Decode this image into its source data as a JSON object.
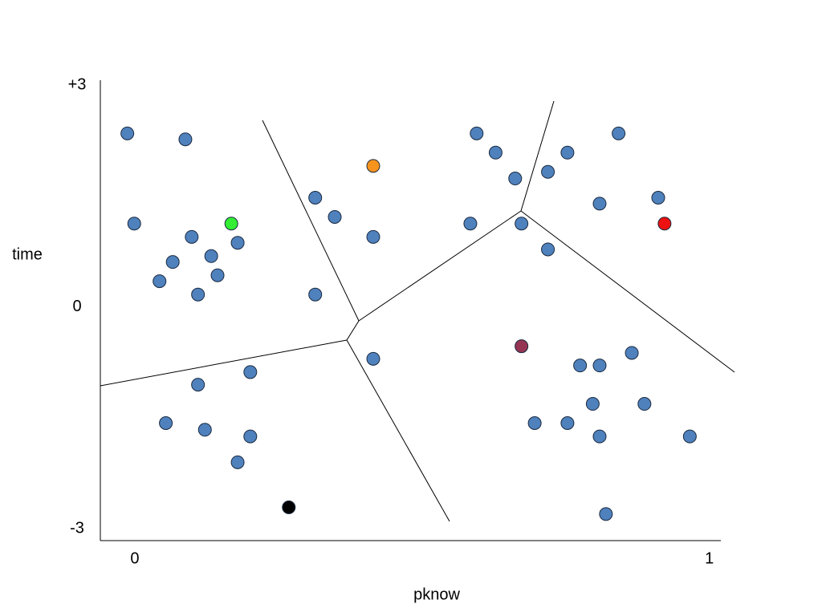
{
  "chart_data": {
    "type": "scatter",
    "xlabel": "pknow",
    "ylabel": "time",
    "xlim": [
      -0.06,
      1.02
    ],
    "ylim": [
      -3.16,
      3.07
    ],
    "xticks": [
      0,
      1
    ],
    "yticks": [
      {
        "value": 3,
        "label": "+3"
      },
      0,
      -3
    ],
    "series": [
      {
        "color": "#4f81bd",
        "x": [
          -0.013,
          0.088,
          -0.001,
          0.099,
          0.179,
          0.066,
          0.133,
          0.043,
          0.144,
          0.11,
          0.314,
          0.348,
          0.415,
          0.314,
          0.595,
          0.628,
          0.662,
          0.584,
          0.673,
          0.719,
          0.753,
          0.842,
          0.809,
          0.911,
          0.719,
          0.865,
          0.775,
          0.809,
          0.797,
          0.887,
          0.696,
          0.753,
          0.809,
          0.966,
          0.82,
          0.415,
          0.201,
          0.11,
          0.054,
          0.122,
          0.201,
          0.179
        ],
        "values": [
          2.35,
          2.27,
          1.13,
          0.95,
          0.87,
          0.61,
          0.69,
          0.35,
          0.43,
          0.17,
          1.48,
          1.22,
          0.95,
          0.17,
          2.35,
          2.09,
          1.74,
          1.13,
          1.13,
          1.83,
          2.09,
          2.35,
          1.4,
          1.48,
          0.78,
          -0.62,
          -0.79,
          -0.79,
          -1.31,
          -1.31,
          -1.57,
          -1.57,
          -1.75,
          -1.75,
          -2.8,
          -0.7,
          -0.88,
          -1.05,
          -1.57,
          -1.66,
          -1.75,
          -2.1
        ]
      },
      {
        "color": "#33ee33",
        "x": [
          0.168
        ],
        "values": [
          1.13
        ]
      },
      {
        "color": "#f7941d",
        "x": [
          0.415
        ],
        "values": [
          1.91
        ]
      },
      {
        "color": "#ee1111",
        "x": [
          0.922
        ],
        "values": [
          1.13
        ]
      },
      {
        "color": "#953553",
        "x": [
          0.673
        ],
        "values": [
          -0.53
        ]
      },
      {
        "color": "#000000",
        "x": [
          0.268
        ],
        "values": [
          -2.71
        ]
      }
    ]
  }
}
